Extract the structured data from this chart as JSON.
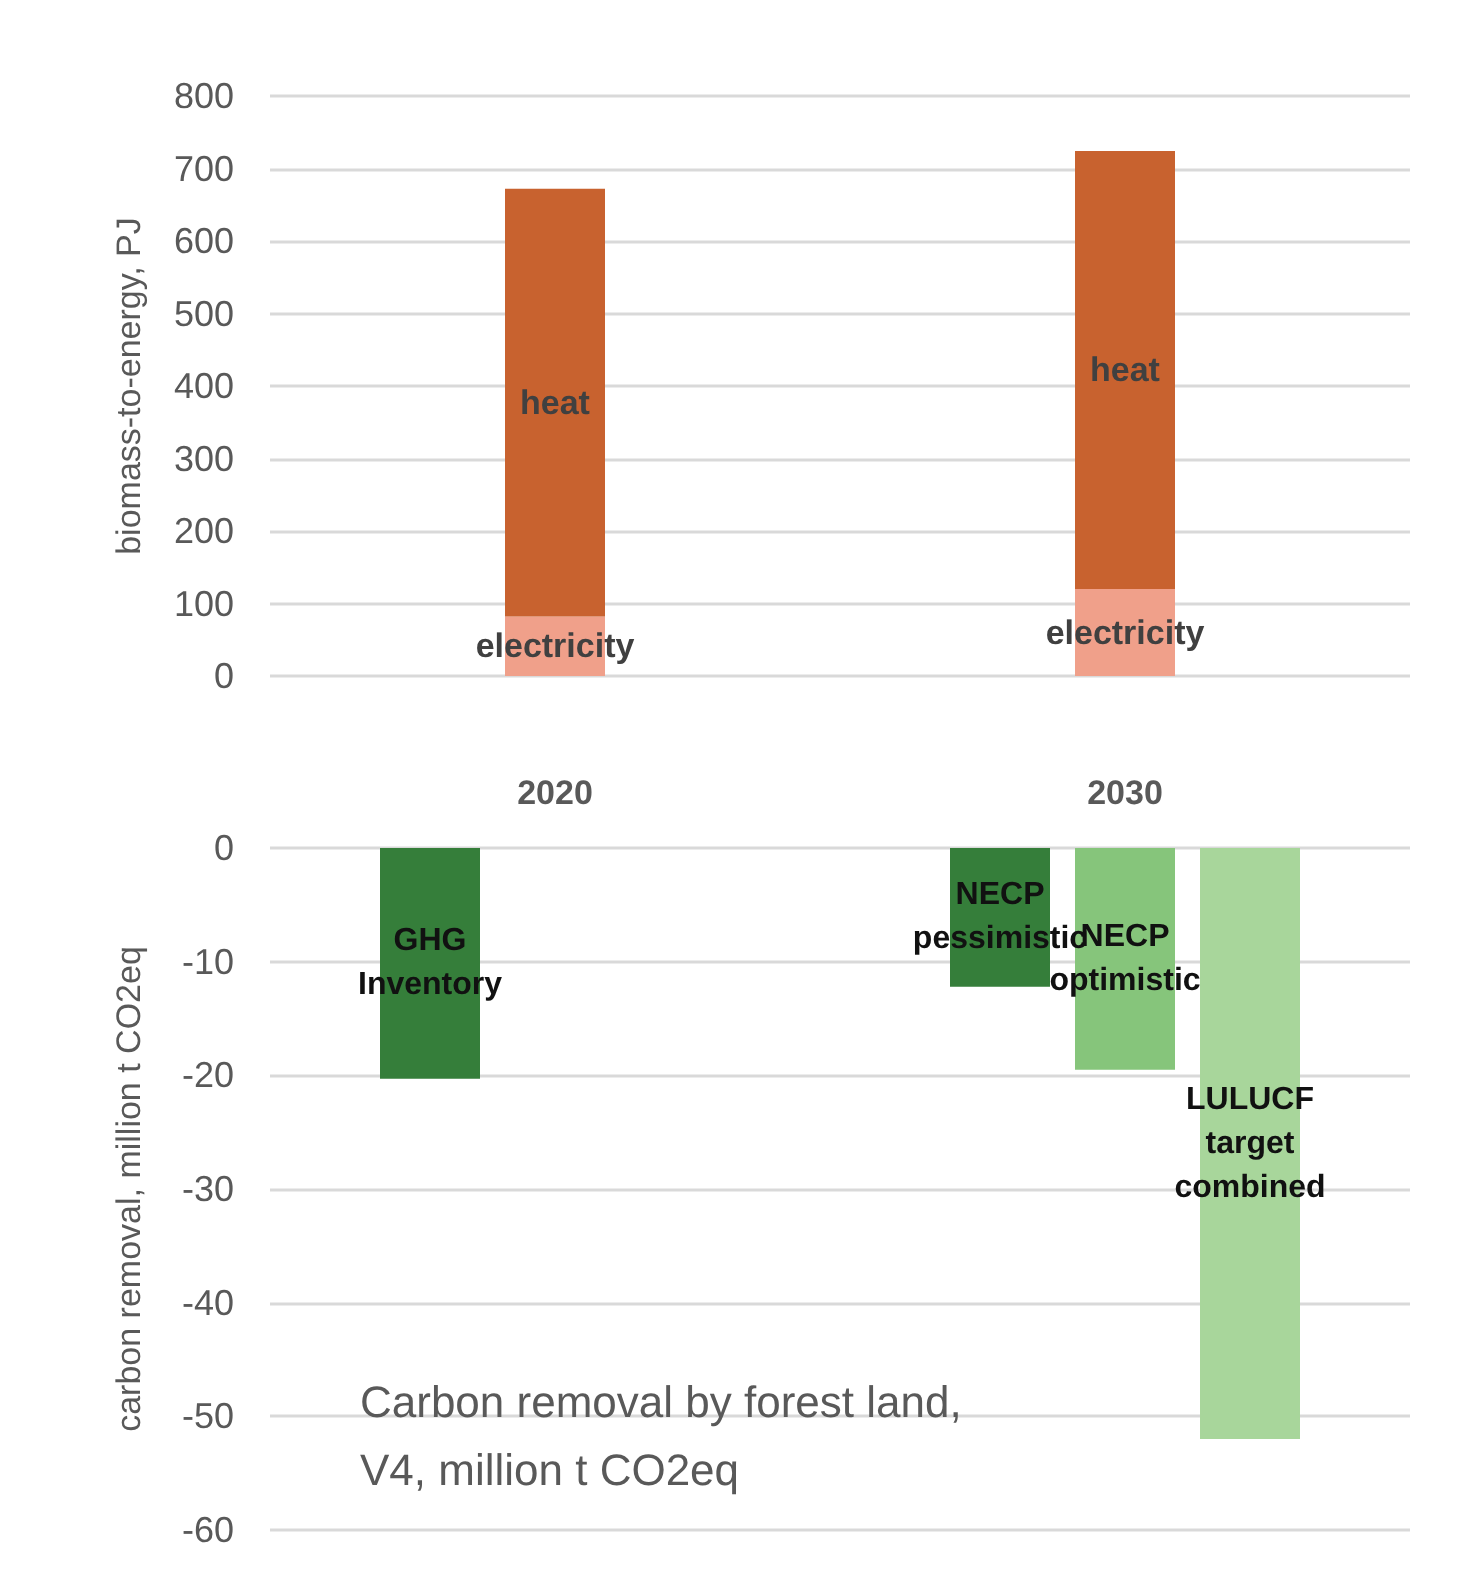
{
  "chart_data": [
    {
      "type": "bar",
      "stacked": true,
      "categories": [
        "2020",
        "2030"
      ],
      "ylabel": "biomass-to-energy, PJ",
      "ylim": [
        0,
        800
      ],
      "yticks": [
        0,
        100,
        200,
        300,
        400,
        500,
        600,
        700,
        800
      ],
      "grid": "y",
      "legend": false,
      "series": [
        {
          "name": "electricity",
          "color": "#f0a08a",
          "values": [
            82,
            120
          ]
        },
        {
          "name": "heat",
          "color": "#c8622f",
          "values": [
            590,
            604
          ]
        }
      ]
    },
    {
      "type": "bar",
      "categories": [
        null,
        null
      ],
      "ylabel": "carbon removal, million t CO2eq",
      "ylim": [
        -60,
        0
      ],
      "yticks": [
        -60,
        -50,
        -40,
        -30,
        -20,
        -10,
        0
      ],
      "grid": "y",
      "legend": false,
      "annotations": [
        "Carbon removal by forest land, V4, million t CO2eq"
      ],
      "series": [
        {
          "color": "#357e3a",
          "values": [
            -20.3,
            -12.2
          ],
          "value_labels": [
            "GHG Inventory",
            "NECP pessimistic"
          ]
        },
        {
          "color": "#86c57b",
          "values": [
            null,
            -19.5
          ],
          "value_labels": [
            null,
            "NECP optimistic"
          ]
        },
        {
          "color": "#a8d69b",
          "values": [
            null,
            -52
          ],
          "value_labels": [
            null,
            "LULUCF target combined"
          ]
        }
      ]
    }
  ]
}
